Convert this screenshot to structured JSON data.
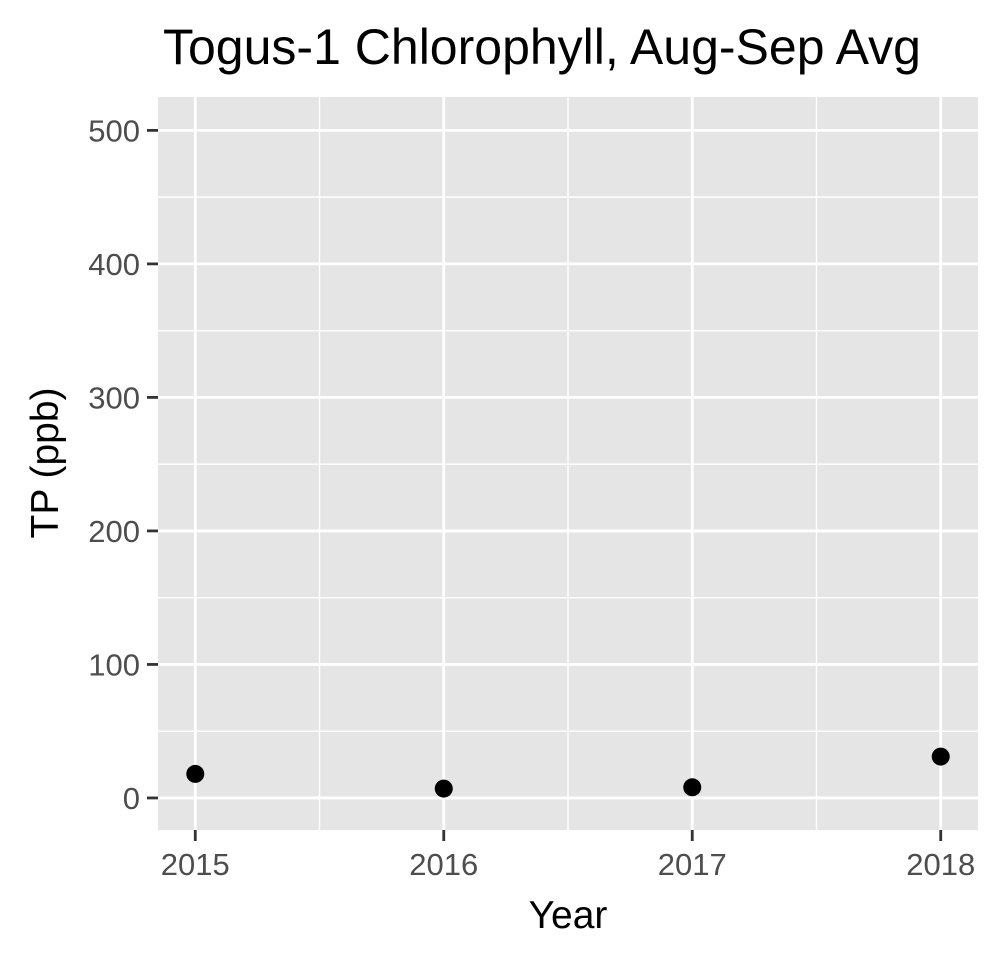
{
  "chart_data": {
    "type": "scatter",
    "title": "Togus-1 Chlorophyll, Aug-Sep Avg",
    "xlabel": "Year",
    "ylabel": "TP (ppb)",
    "x": [
      2015,
      2016,
      2017,
      2018
    ],
    "y": [
      18,
      7,
      8,
      31
    ],
    "x_ticks": [
      "2015",
      "2016",
      "2017",
      "2018"
    ],
    "y_ticks": [
      "0",
      "100",
      "200",
      "300",
      "400",
      "500"
    ],
    "xlim": [
      2014.85,
      2018.15
    ],
    "ylim": [
      -24,
      525
    ],
    "grid": true,
    "legend": "none",
    "colors": {
      "panel": "#e5e5e5",
      "grid": "#ffffff",
      "point": "#000000",
      "tick": "#333333"
    }
  }
}
